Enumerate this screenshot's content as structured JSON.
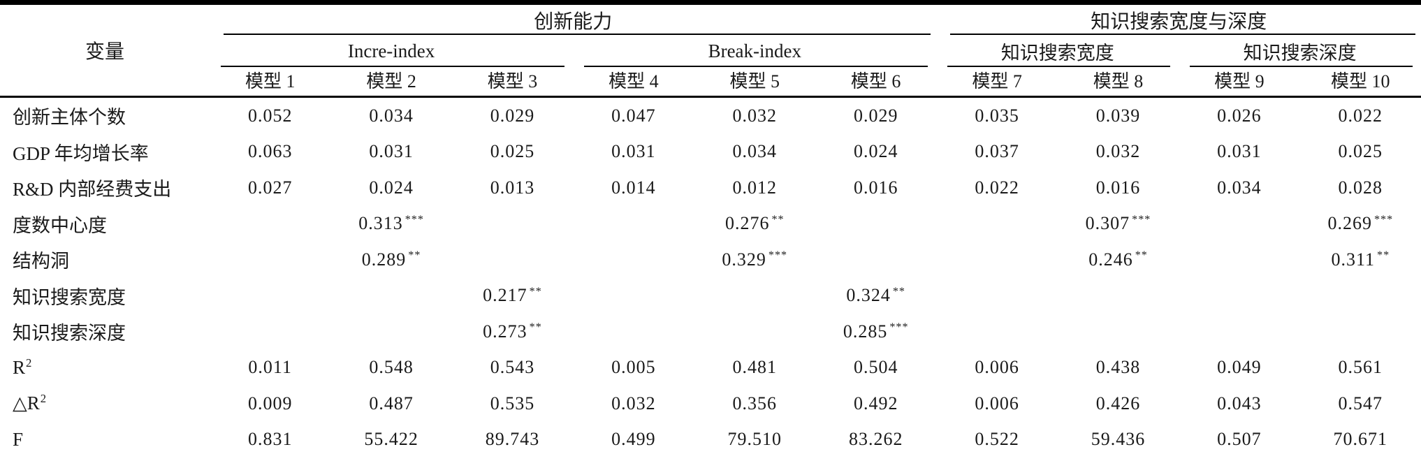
{
  "table": {
    "header": {
      "variable_label": "变量",
      "groups": [
        {
          "label": "创新能力"
        },
        {
          "label": "知识搜索宽度与深度"
        }
      ],
      "subgroups": [
        {
          "label": "Incre-index"
        },
        {
          "label": "Break-index"
        },
        {
          "label": "知识搜索宽度"
        },
        {
          "label": "知识搜索深度"
        }
      ],
      "models": [
        "模型 1",
        "模型 2",
        "模型 3",
        "模型 4",
        "模型 5",
        "模型 6",
        "模型 7",
        "模型 8",
        "模型 9",
        "模型 10"
      ]
    },
    "rows": [
      {
        "label": "创新主体个数",
        "cells": [
          "0.052",
          "0.034",
          "0.029",
          "0.047",
          "0.032",
          "0.029",
          "0.035",
          "0.039",
          "0.026",
          "0.022"
        ]
      },
      {
        "label": "GDP 年均增长率",
        "cells": [
          "0.063",
          "0.031",
          "0.025",
          "0.031",
          "0.034",
          "0.024",
          "0.037",
          "0.032",
          "0.031",
          "0.025"
        ]
      },
      {
        "label": "R&D 内部经费支出",
        "cells": [
          "0.027",
          "0.024",
          "0.013",
          "0.014",
          "0.012",
          "0.016",
          "0.022",
          "0.016",
          "0.034",
          "0.028"
        ]
      },
      {
        "label": "度数中心度",
        "cells": [
          "",
          "0.313***",
          "",
          "",
          "0.276**",
          "",
          "",
          "0.307***",
          "",
          "0.269***"
        ]
      },
      {
        "label": "结构洞",
        "cells": [
          "",
          "0.289**",
          "",
          "",
          "0.329***",
          "",
          "",
          "0.246**",
          "",
          "0.311**"
        ]
      },
      {
        "label": "知识搜索宽度",
        "cells": [
          "",
          "",
          "0.217**",
          "",
          "",
          "0.324**",
          "",
          "",
          "",
          ""
        ]
      },
      {
        "label": "知识搜索深度",
        "cells": [
          "",
          "",
          "0.273**",
          "",
          "",
          "0.285***",
          "",
          "",
          "",
          ""
        ]
      },
      {
        "label": "R",
        "label_sup": "2",
        "cells": [
          "0.011",
          "0.548",
          "0.543",
          "0.005",
          "0.481",
          "0.504",
          "0.006",
          "0.438",
          "0.049",
          "0.561"
        ]
      },
      {
        "label": "△R",
        "label_sup": "2",
        "cells": [
          "0.009",
          "0.487",
          "0.535",
          "0.032",
          "0.356",
          "0.492",
          "0.006",
          "0.426",
          "0.043",
          "0.547"
        ]
      },
      {
        "label": "F",
        "cells": [
          "0.831",
          "55.422",
          "89.743",
          "0.499",
          "79.510",
          "83.262",
          "0.522",
          "59.436",
          "0.507",
          "70.671"
        ]
      }
    ],
    "colors": {
      "text": "#1a1a1a",
      "rule": "#000000",
      "background": "#ffffff"
    }
  }
}
